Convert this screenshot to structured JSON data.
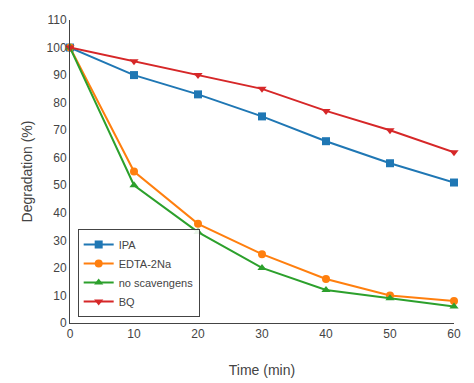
{
  "chart_data": {
    "type": "line",
    "x_label": "Time (min)",
    "y_label": "Degradation (%)",
    "x": [
      0,
      10,
      20,
      30,
      40,
      50,
      60
    ],
    "series": [
      {
        "name": "IPA",
        "marker": "square",
        "values": [
          100,
          90,
          83,
          75,
          66,
          58,
          51
        ]
      },
      {
        "name": "EDTA-2Na",
        "marker": "circle",
        "values": [
          100,
          55,
          36,
          25,
          16,
          10,
          8
        ]
      },
      {
        "name": "no scavengens",
        "marker": "triangle-up",
        "values": [
          100,
          50,
          33,
          20,
          12,
          9,
          6
        ]
      },
      {
        "name": "BQ",
        "marker": "triangle-down",
        "values": [
          100,
          95,
          90,
          85,
          77,
          70,
          62
        ]
      }
    ],
    "xlim": [
      0,
      60
    ],
    "xticks": [
      0,
      10,
      20,
      30,
      40,
      50,
      60
    ],
    "ylim": [
      0,
      110
    ],
    "yticks": [
      0,
      10,
      20,
      30,
      40,
      50,
      60,
      70,
      80,
      90,
      100,
      110
    ],
    "grid": false,
    "legend": "lower left"
  }
}
